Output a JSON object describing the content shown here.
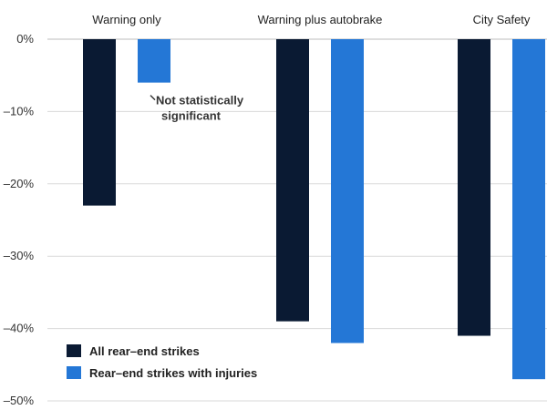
{
  "chart_data": {
    "type": "bar",
    "title": "",
    "xlabel": "",
    "ylabel": "",
    "categories": [
      "Warning only",
      "Warning plus autobrake",
      "City Safety"
    ],
    "series": [
      {
        "name": "All rear–end strikes",
        "values": [
          -23,
          -39,
          -41
        ],
        "color": "#0a1a33"
      },
      {
        "name": "Rear–end strikes with injuries",
        "values": [
          -6,
          -42,
          -47
        ],
        "color": "#2477d6"
      }
    ],
    "ylim": [
      -50,
      0
    ],
    "yticks": [
      0,
      -10,
      -20,
      -30,
      -40,
      -50
    ],
    "ytick_labels": [
      "0%",
      "–10%",
      "–20%",
      "–30%",
      "–40%",
      "–50%"
    ],
    "grid": true,
    "legend_position": "bottom-left",
    "annotations": [
      {
        "category_index": 0,
        "series_index": 1,
        "lines": [
          "Not statistically",
          "significant"
        ]
      }
    ]
  }
}
